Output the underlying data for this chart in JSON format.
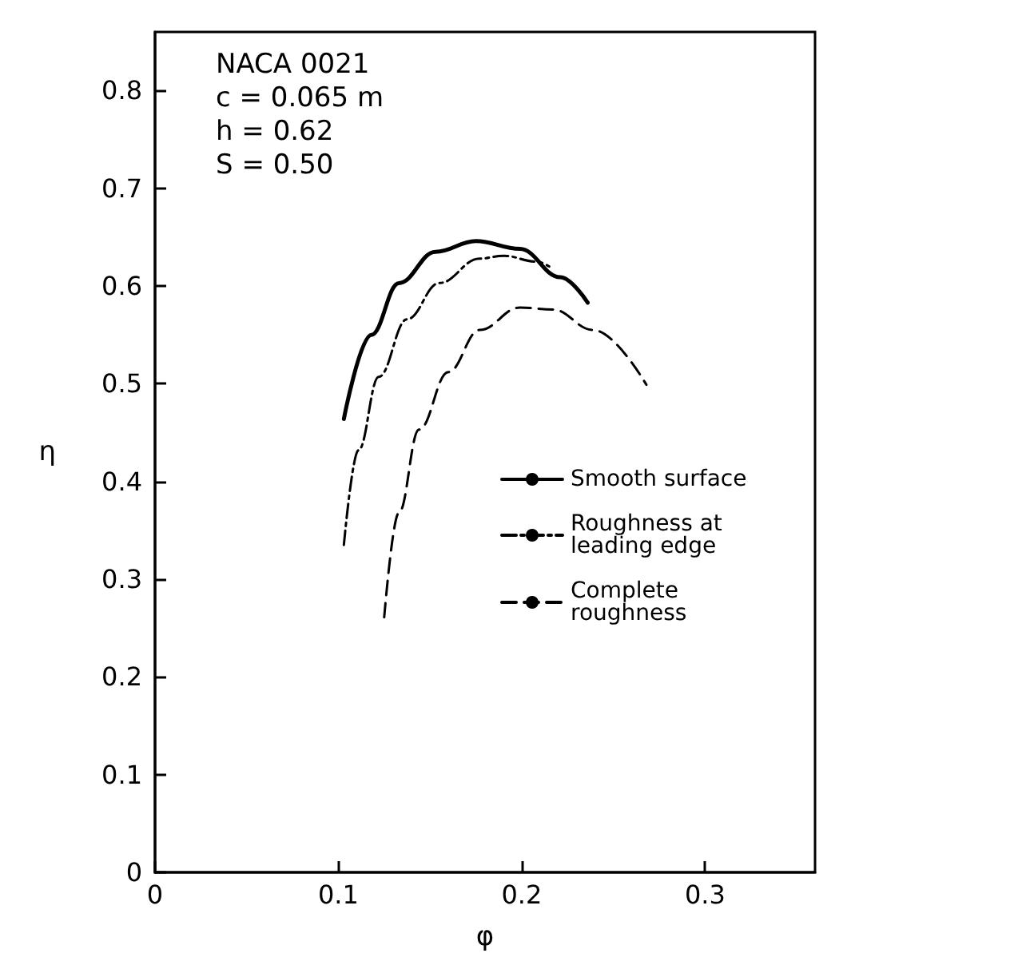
{
  "chart_data": {
    "type": "line",
    "xlabel": "φ",
    "ylabel": "η",
    "annotations": [
      "NACA 0021",
      "c = 0.065 m",
      "h = 0.62",
      "S = 0.50"
    ],
    "xlim": [
      0,
      0.36
    ],
    "xticks": [
      0,
      0.1,
      0.2,
      0.3
    ],
    "ylim": [
      0,
      0.86
    ],
    "yticks": [
      0,
      0.1,
      0.2,
      0.3,
      0.4,
      0.5,
      0.6,
      0.7,
      0.8
    ],
    "grid": false,
    "legend": "bottom right",
    "marker": "none",
    "series": [
      {
        "name": "Smooth surface",
        "color": "#000000",
        "line_style": "solid",
        "x": [
          0.103,
          0.118,
          0.133,
          0.153,
          0.175,
          0.199,
          0.221,
          0.236
        ],
        "values": [
          0.464,
          0.55,
          0.603,
          0.635,
          0.646,
          0.638,
          0.609,
          0.583
        ]
      },
      {
        "name": "Roughness at leading edge",
        "color": "#000000",
        "line_style": "dashdot",
        "x": [
          0.103,
          0.111,
          0.122,
          0.1375,
          0.155,
          0.177,
          0.19,
          0.208,
          0.215
        ],
        "values": [
          0.335,
          0.432,
          0.507,
          0.566,
          0.603,
          0.628,
          0.631,
          0.625,
          0.62
        ]
      },
      {
        "name": "Complete roughness",
        "color": "#000000",
        "line_style": "dashed",
        "x": [
          0.125,
          0.133,
          0.144,
          0.16,
          0.177,
          0.199,
          0.217,
          0.239,
          0.268
        ],
        "values": [
          0.261,
          0.368,
          0.453,
          0.512,
          0.555,
          0.578,
          0.576,
          0.555,
          0.499
        ]
      }
    ]
  }
}
